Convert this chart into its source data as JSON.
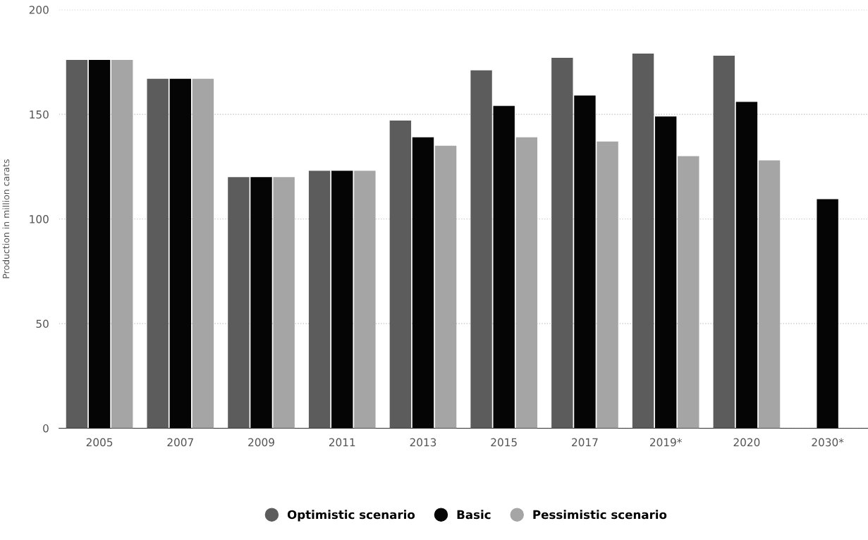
{
  "chart_data": {
    "type": "bar",
    "ylabel": "Production in million carats",
    "categories": [
      "2005",
      "2007",
      "2009",
      "2011",
      "2013",
      "2015",
      "2017",
      "2019*",
      "2020",
      "2030*"
    ],
    "series": [
      {
        "name": "Optimistic scenario",
        "color": "#5c5c5c",
        "values": [
          176,
          167,
          120,
          123,
          147,
          171,
          177,
          179,
          178,
          null
        ]
      },
      {
        "name": "Basic",
        "color": "#050505",
        "values": [
          176,
          167,
          120,
          123,
          139,
          154,
          159,
          149,
          156,
          109.5
        ]
      },
      {
        "name": "Pessimistic scenario",
        "color": "#a5a5a5",
        "values": [
          176,
          167,
          120,
          123,
          135,
          139,
          137,
          130,
          128,
          null
        ]
      }
    ],
    "ylim": [
      0,
      200
    ],
    "yticks": [
      0,
      50,
      100,
      150,
      200
    ],
    "grid": "y",
    "legend": "bottom"
  }
}
